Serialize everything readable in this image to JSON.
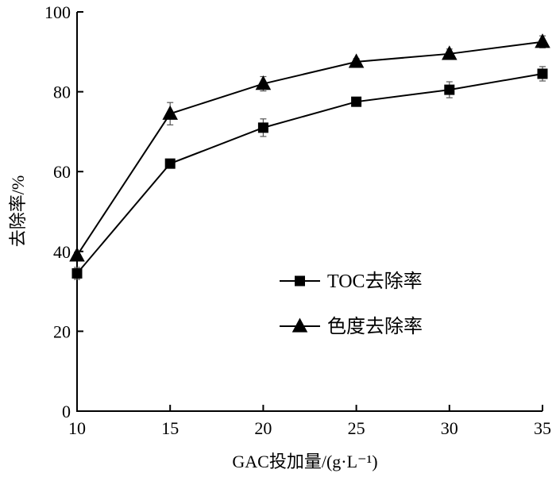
{
  "chart_data": {
    "type": "line",
    "title": "",
    "xlabel": "GAC投加量/(g·L⁻¹)",
    "ylabel": "去除率/%",
    "x": [
      10,
      15,
      20,
      25,
      30,
      35
    ],
    "xlim": [
      10,
      35
    ],
    "ylim": [
      0,
      100
    ],
    "xticks": [
      "10",
      "15",
      "20",
      "25",
      "30",
      "35"
    ],
    "yticks": [
      "0",
      "20",
      "40",
      "60",
      "80",
      "100"
    ],
    "grid": false,
    "legend_position": "center-right",
    "series": [
      {
        "name": "TOC去除率",
        "marker": "square",
        "values": [
          34.5,
          62,
          71,
          77.5,
          80.5,
          84.5
        ],
        "errors": [
          1.5,
          0.8,
          2.2,
          0.8,
          2,
          1.8
        ]
      },
      {
        "name": "色度去除率",
        "marker": "triangle",
        "values": [
          39,
          74.5,
          82,
          87.5,
          89.5,
          92.5
        ],
        "errors": [
          0.8,
          2.8,
          1.8,
          0.8,
          1.2,
          1.5
        ]
      }
    ]
  }
}
